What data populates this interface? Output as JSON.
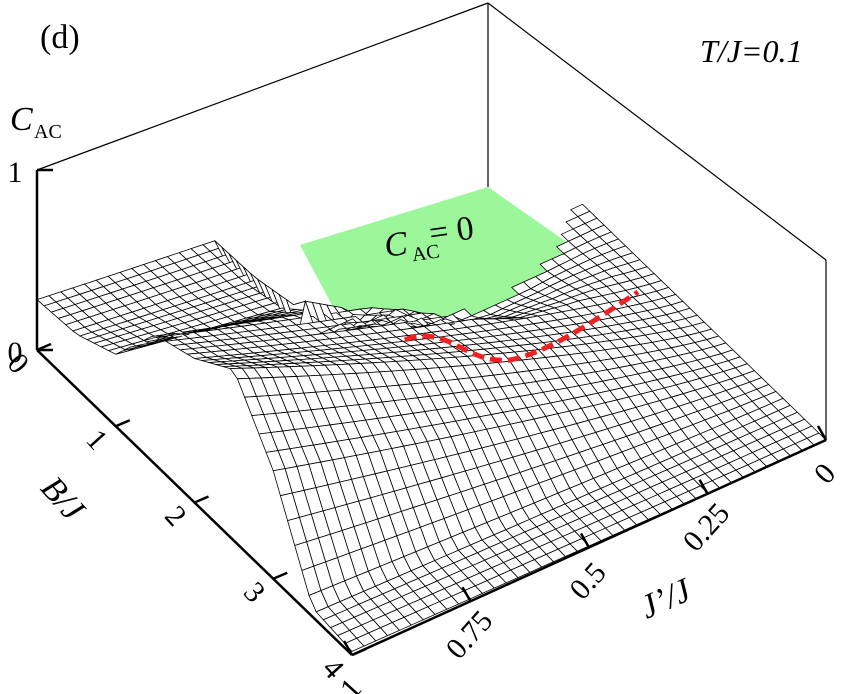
{
  "panel_label": "(d)",
  "temperature_label": "T/J=0.1",
  "region_label": {
    "main": "C",
    "sub": "AC",
    "rest": "= 0"
  },
  "chart_data": {
    "type": "surface-3d",
    "z_axis": {
      "label_main": "C",
      "label_sub": "AC",
      "range": [
        0,
        1
      ],
      "ticks": [
        "0",
        "1"
      ]
    },
    "y_axis": {
      "label": "B/J",
      "range": [
        0,
        4
      ],
      "ticks": [
        "0",
        "1",
        "2",
        "3",
        "4"
      ]
    },
    "x_axis": {
      "label": "J’/J",
      "range": [
        0,
        1
      ],
      "ticks": [
        "0",
        "0.25",
        "0.5",
        "0.75",
        "1"
      ]
    },
    "zero_region": {
      "label": "C_AC = 0",
      "fill": "#9cf79a",
      "boundary_color": "#ee2222"
    },
    "surface_profile": {
      "note": "concurrence C_AC vs B/J along J'/J = 0 and J'/J = 1 edges",
      "B_values": [
        0,
        0.5,
        1.0,
        1.5,
        2.0,
        2.5,
        3.0,
        3.5,
        4.0
      ],
      "C_at_Jp_1": [
        0.28,
        0.3,
        0.4,
        0.72,
        0.8,
        0.95,
        0.6,
        0.05,
        0.02
      ],
      "C_at_Jp_0": [
        0.0,
        0.0,
        0.0,
        0.0,
        0.0,
        0.0,
        0.0,
        0.0,
        0.0
      ]
    },
    "boundary_B_at_Jp": {
      "Jp": [
        0.0,
        0.1,
        0.2,
        0.3,
        0.4,
        0.5,
        0.6
      ],
      "B": [
        1.0,
        1.3,
        1.45,
        1.5,
        1.4,
        1.1,
        1.0
      ]
    },
    "colors": {
      "grid": "#000000",
      "surface": "#ffffff"
    }
  }
}
